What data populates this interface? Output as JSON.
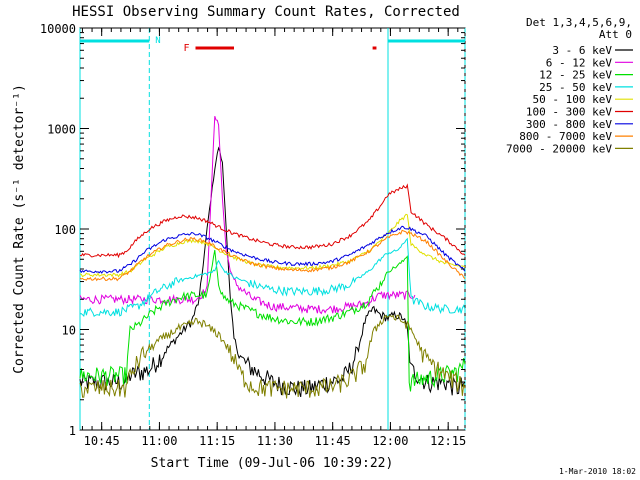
{
  "chart_data": {
    "type": "line",
    "title": "HESSI Observing Summary Count Rates, Corrected",
    "xlabel": "Start Time (09-Jul-06 10:39:22)",
    "ylabel": "Corrected Count Rate (s⁻¹ detector⁻¹)",
    "yscale": "log",
    "ylim": [
      1,
      10000
    ],
    "xlim_min": [
      0,
      100
    ],
    "x_ticks": [
      {
        "min": 5.63,
        "label": "10:45"
      },
      {
        "min": 20.63,
        "label": "11:00"
      },
      {
        "min": 35.63,
        "label": "11:15"
      },
      {
        "min": 50.63,
        "label": "11:30"
      },
      {
        "min": 65.63,
        "label": "11:45"
      },
      {
        "min": 80.63,
        "label": "12:00"
      },
      {
        "min": 95.63,
        "label": "12:15"
      }
    ],
    "y_ticks": [
      {
        "v": 1,
        "label": "1"
      },
      {
        "v": 10,
        "label": "10"
      },
      {
        "v": 100,
        "label": "100"
      },
      {
        "v": 1000,
        "label": "1000"
      },
      {
        "v": 10000,
        "label": "10000"
      }
    ],
    "legend_title": [
      "Det 1,3,4,5,6,9,",
      "Att 0"
    ],
    "timestamp": "1-Mar-2010 18:02",
    "annotations": {
      "flag_n": "N",
      "flag_f": "F"
    },
    "night_bars": [
      [
        0,
        18
      ],
      [
        80,
        100
      ]
    ],
    "night_lines": [
      0,
      18,
      80,
      100
    ],
    "flare_bars": [
      [
        30,
        40
      ],
      [
        76,
        77
      ]
    ],
    "series": [
      {
        "name": "3 - 6 keV",
        "color": "#000000",
        "x": [
          0,
          12,
          13,
          18,
          22,
          27,
          29,
          31,
          33,
          35,
          36,
          37,
          38,
          39,
          40,
          42,
          45,
          50,
          56,
          60,
          64,
          68,
          70,
          72,
          74,
          76,
          78,
          80,
          82,
          84,
          85,
          86,
          88,
          90,
          95,
          98,
          100
        ],
        "y": [
          3,
          3,
          3.5,
          4,
          6,
          10,
          12,
          20,
          100,
          400,
          650,
          450,
          100,
          20,
          8,
          5,
          4,
          3,
          2.6,
          2.6,
          3,
          3.2,
          4,
          6,
          12,
          16,
          14,
          13,
          14,
          13,
          10,
          4,
          3.5,
          3,
          3,
          2.6,
          3
        ]
      },
      {
        "name": "6 - 12 keV",
        "color": "#e000e0",
        "x": [
          0,
          10,
          15,
          20,
          25,
          30,
          33,
          34,
          35,
          36,
          37,
          38,
          39,
          40,
          42,
          45,
          50,
          60,
          65,
          70,
          74,
          76,
          78,
          80,
          82,
          85,
          86,
          87
        ],
        "y": [
          20,
          20,
          20,
          20,
          20,
          20,
          25,
          200,
          1300,
          1100,
          200,
          60,
          40,
          30,
          25,
          20,
          17,
          16,
          16,
          17,
          18,
          20,
          22,
          22,
          22,
          22,
          22,
          22
        ]
      },
      {
        "name": "12 - 25 keV",
        "color": "#00e000",
        "x": [
          0,
          12,
          13,
          15,
          18,
          22,
          26,
          30,
          33,
          35,
          36,
          37,
          38,
          40,
          45,
          50,
          55,
          60,
          65,
          70,
          74,
          77,
          79,
          80,
          82,
          84,
          85,
          85.5,
          90,
          98,
          100
        ],
        "y": [
          3.5,
          3.5,
          10,
          11,
          14,
          18,
          21,
          22,
          22,
          60,
          30,
          22,
          20,
          18,
          15,
          13,
          12,
          12,
          13,
          15,
          18,
          25,
          32,
          38,
          42,
          48,
          55,
          3,
          3.3,
          3.8,
          4.5
        ]
      },
      {
        "name": "25 - 50 keV",
        "color": "#00e0e0",
        "x": [
          0,
          10,
          15,
          20,
          25,
          30,
          33,
          35,
          36,
          37,
          40,
          45,
          50,
          55,
          60,
          65,
          70,
          75,
          78,
          80,
          82,
          84,
          85,
          86,
          90,
          95,
          100
        ],
        "y": [
          15,
          15,
          17,
          24,
          30,
          34,
          36,
          38,
          50,
          40,
          33,
          28,
          25,
          24,
          24,
          25,
          28,
          38,
          50,
          58,
          60,
          70,
          82,
          20,
          17,
          16,
          16
        ]
      },
      {
        "name": "50 - 100 keV",
        "color": "#e0e000",
        "x": [
          0,
          10,
          13,
          17,
          22,
          27,
          30,
          33,
          36,
          40,
          45,
          50,
          55,
          60,
          65,
          70,
          75,
          80,
          83,
          85,
          86,
          90,
          95,
          100
        ],
        "y": [
          35,
          35,
          38,
          50,
          65,
          75,
          77,
          72,
          62,
          52,
          45,
          42,
          41,
          41,
          43,
          48,
          60,
          90,
          120,
          140,
          70,
          55,
          45,
          42
        ]
      },
      {
        "name": "100 - 300 keV",
        "color": "#e00000",
        "x": [
          0,
          10,
          12,
          15,
          18,
          22,
          26,
          30,
          33,
          36,
          40,
          45,
          50,
          55,
          60,
          65,
          70,
          75,
          78,
          80,
          82,
          84,
          85,
          86,
          90,
          95,
          100
        ],
        "y": [
          55,
          55,
          60,
          80,
          100,
          120,
          135,
          130,
          120,
          105,
          90,
          78,
          70,
          66,
          66,
          70,
          85,
          120,
          170,
          220,
          240,
          260,
          270,
          150,
          110,
          80,
          55
        ]
      },
      {
        "name": "300 - 800 keV",
        "color": "#0000e0",
        "x": [
          0,
          10,
          13,
          17,
          22,
          27,
          30,
          33,
          36,
          40,
          45,
          50,
          55,
          60,
          65,
          70,
          75,
          80,
          84,
          86,
          90,
          95,
          100
        ],
        "y": [
          38,
          38,
          44,
          60,
          78,
          88,
          90,
          82,
          72,
          60,
          52,
          47,
          45,
          45,
          47,
          55,
          70,
          92,
          105,
          100,
          85,
          55,
          38
        ]
      },
      {
        "name": "800 - 7000 keV",
        "color": "#ff8000",
        "x": [
          0,
          10,
          13,
          17,
          22,
          27,
          30,
          33,
          36,
          40,
          45,
          50,
          55,
          60,
          65,
          70,
          75,
          80,
          84,
          86,
          90,
          95,
          100
        ],
        "y": [
          32,
          32,
          38,
          52,
          68,
          78,
          80,
          74,
          64,
          53,
          45,
          41,
          39,
          39,
          41,
          47,
          60,
          82,
          95,
          90,
          75,
          48,
          32
        ]
      },
      {
        "name": "7000 - 20000 keV",
        "color": "#808000",
        "x": [
          0,
          12,
          13,
          16,
          20,
          25,
          28,
          30,
          32,
          34,
          36,
          38,
          40,
          42,
          45,
          50,
          60,
          65,
          70,
          74,
          76,
          78,
          80,
          82,
          84,
          86,
          88,
          90,
          95,
          98,
          100
        ],
        "y": [
          2.6,
          2.6,
          3.5,
          5.5,
          7.5,
          10,
          11,
          12,
          11.5,
          10,
          9,
          7,
          5,
          3.5,
          2.7,
          2.6,
          2.6,
          2.7,
          3.2,
          4.5,
          9,
          12,
          14,
          13,
          12,
          10,
          7,
          5,
          3.5,
          3,
          2.6
        ]
      }
    ]
  }
}
